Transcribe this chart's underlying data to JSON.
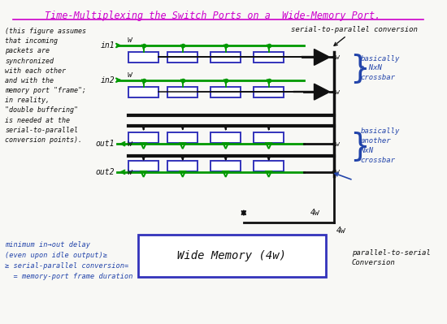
{
  "title": "Time-Multiplexing the Switch Ports on a  Wide-Memory Port.",
  "title_color": "#cc00cc",
  "background_color": "#f8f8f5",
  "box_color": "#3333bb",
  "green_color": "#009900",
  "black_color": "#111111",
  "blue_text_color": "#2244aa",
  "left_note_lines": [
    "(this figure assumes",
    "that incoming",
    "packets are",
    "synchronized",
    "with each other",
    "and with the",
    "memory port \"frame\";",
    "in reality,",
    "\"double buffering\"",
    "is needed at the",
    "serial-to-parallel",
    "conversion points)."
  ],
  "bottom_note_lines": [
    "minimum in→out delay",
    "(even upon idle output)≥",
    "≥ serial-parallel conversion=",
    "  = memory-port frame duration"
  ],
  "serial_to_parallel": "serial-to-parallel conversion",
  "parallel_to_serial": "parallel-to-serial\nConversion",
  "crossbar1_text": [
    "basically",
    "a NxN",
    "crossbar"
  ],
  "crossbar2_text": [
    "basically",
    "another",
    "NxN",
    "crossbar"
  ],
  "wide_memory_text": "Wide Memory (4w)",
  "label_in1": "in1",
  "label_in2": "in2",
  "label_out1": "out1",
  "label_out2": "out2",
  "label_w": "w",
  "label_4w": "4w",
  "figsize": [
    5.5,
    3.99
  ],
  "dpi": 100
}
